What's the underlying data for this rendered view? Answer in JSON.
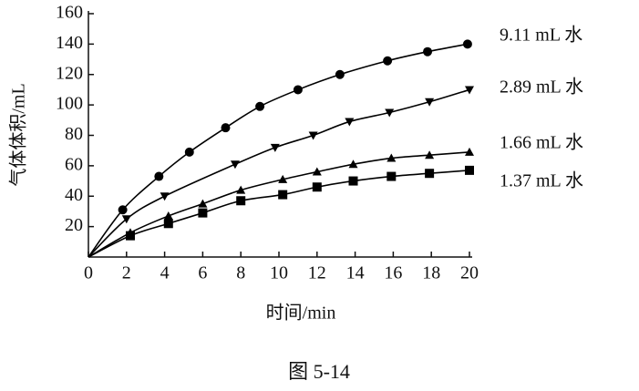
{
  "chart_data": {
    "type": "line",
    "xlabel": "时间/min",
    "ylabel": "气体体积/mL",
    "caption": "图 5-14",
    "xlim": [
      0,
      20
    ],
    "xticks": [
      0,
      2,
      4,
      6,
      8,
      10,
      12,
      14,
      16,
      18,
      20
    ],
    "ylim": [
      0,
      160
    ],
    "yticks": [
      20,
      40,
      60,
      80,
      100,
      120,
      140,
      160
    ],
    "series": [
      {
        "name": "9.11 mL 水",
        "color": "#000000",
        "marker": "circle",
        "x": [
          0,
          1.8,
          3.7,
          5.3,
          7.2,
          9,
          11,
          13.2,
          15.7,
          17.8,
          19.9
        ],
        "values": [
          0,
          31,
          53,
          69,
          85,
          99,
          110,
          120,
          129,
          135,
          140
        ]
      },
      {
        "name": "2.89 mL 水",
        "color": "#000000",
        "marker": "triangle-down",
        "x": [
          0,
          2,
          4,
          7.7,
          9.8,
          11.8,
          13.7,
          15.8,
          17.9,
          20
        ],
        "values": [
          0,
          25,
          40,
          61,
          72,
          80,
          89,
          95,
          102,
          110
        ]
      },
      {
        "name": "1.66 mL 水",
        "color": "#000000",
        "marker": "triangle",
        "x": [
          0,
          2.2,
          4.2,
          6,
          8,
          10.2,
          12,
          13.9,
          15.9,
          17.9,
          20
        ],
        "values": [
          0,
          16,
          27,
          35,
          44,
          51,
          56,
          61,
          65,
          67,
          69
        ]
      },
      {
        "name": "1.37 mL 水",
        "color": "#000000",
        "marker": "square",
        "x": [
          0,
          2.2,
          4.2,
          6,
          8,
          10.2,
          12,
          13.9,
          15.9,
          17.9,
          20
        ],
        "values": [
          0,
          14,
          22,
          29,
          37,
          41,
          46,
          50,
          53,
          55,
          57
        ]
      }
    ]
  }
}
